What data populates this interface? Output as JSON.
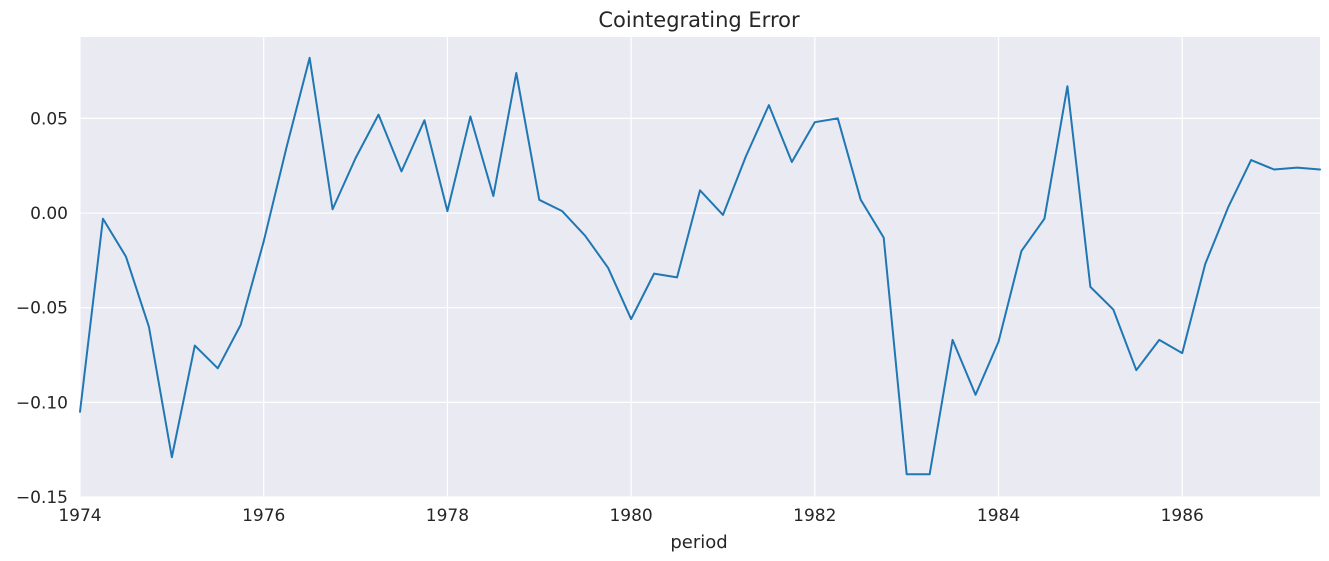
{
  "chart_data": {
    "type": "line",
    "title": "Cointegrating Error",
    "xlabel": "period",
    "ylabel": "",
    "xlim": [
      1974.0,
      1987.5
    ],
    "ylim": [
      -0.15,
      0.093
    ],
    "x_ticks": [
      1974,
      1976,
      1978,
      1980,
      1982,
      1984,
      1986
    ],
    "x_tick_labels": [
      "1974",
      "1976",
      "1978",
      "1980",
      "1982",
      "1984",
      "1986"
    ],
    "y_ticks": [
      -0.15,
      -0.1,
      -0.05,
      0.0,
      0.05
    ],
    "y_tick_labels": [
      "−0.15",
      "−0.10",
      "−0.05",
      "0.00",
      "0.05"
    ],
    "grid": true,
    "legend": "none",
    "colors": {
      "line": "#1f77b4",
      "background": "#eaeaf2",
      "grid": "#ffffff"
    },
    "series": [
      {
        "x": [
          1974.0,
          1974.25,
          1974.5,
          1974.75,
          1975.0,
          1975.25,
          1975.5,
          1975.75,
          1976.0,
          1976.25,
          1976.5,
          1976.75,
          1977.0,
          1977.25,
          1977.5,
          1977.75,
          1978.0,
          1978.25,
          1978.5,
          1978.75,
          1979.0,
          1979.25,
          1979.5,
          1979.75,
          1980.0,
          1980.25,
          1980.5,
          1980.75,
          1981.0,
          1981.25,
          1981.5,
          1981.75,
          1982.0,
          1982.25,
          1982.5,
          1982.75,
          1983.0,
          1983.25,
          1983.5,
          1983.75,
          1984.0,
          1984.25,
          1984.5,
          1984.75,
          1985.0,
          1985.25,
          1985.5,
          1985.75,
          1986.0,
          1986.25,
          1986.5,
          1986.75,
          1987.0,
          1987.25,
          1987.5
        ],
        "values": [
          -0.105,
          -0.003,
          -0.023,
          -0.06,
          -0.129,
          -0.07,
          -0.082,
          -0.059,
          -0.015,
          0.035,
          0.082,
          0.002,
          0.029,
          0.052,
          0.022,
          0.049,
          0.001,
          0.051,
          0.009,
          0.074,
          0.007,
          0.001,
          -0.012,
          -0.029,
          -0.056,
          -0.032,
          -0.034,
          0.012,
          -0.001,
          0.03,
          0.057,
          0.027,
          0.048,
          0.05,
          0.007,
          -0.013,
          -0.138,
          -0.138,
          -0.067,
          -0.096,
          -0.068,
          -0.02,
          -0.003,
          0.067,
          -0.039,
          -0.051,
          -0.083,
          -0.067,
          -0.074,
          -0.027,
          0.003,
          0.028,
          0.023,
          0.024,
          0.023
        ]
      }
    ]
  }
}
